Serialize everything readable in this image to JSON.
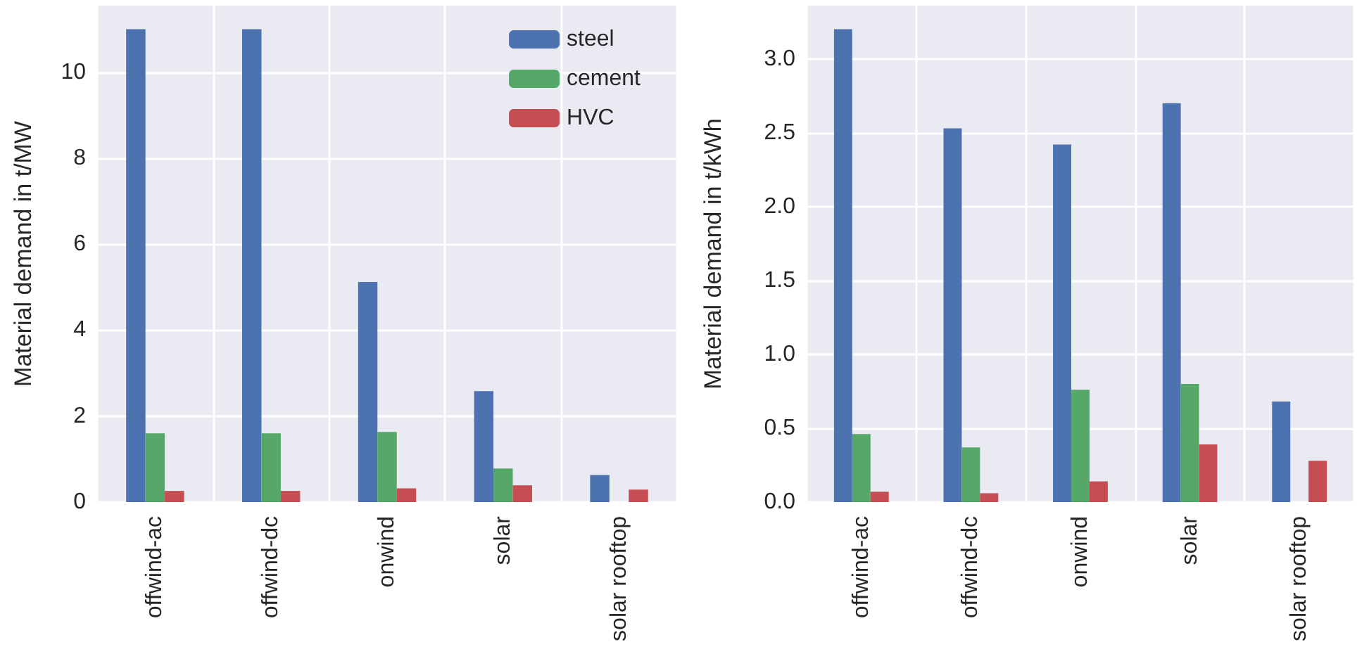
{
  "chart_data": [
    {
      "type": "bar",
      "ylabel": "Material demand in t/MW",
      "categories": [
        "offwind-ac",
        "offwind-dc",
        "onwind",
        "solar",
        "solar rooftop"
      ],
      "series": [
        {
          "name": "steel",
          "color": "#4c72b0",
          "values": [
            11.0,
            11.0,
            5.12,
            2.58,
            0.63
          ]
        },
        {
          "name": "cement",
          "color": "#55a868",
          "values": [
            1.6,
            1.6,
            1.63,
            0.78,
            null
          ]
        },
        {
          "name": "HVC",
          "color": "#c44e52",
          "values": [
            0.26,
            0.26,
            0.32,
            0.39,
            0.29
          ]
        }
      ],
      "ylim": [
        0,
        11.55
      ],
      "yticks": [
        0,
        2,
        4,
        6,
        8,
        10
      ],
      "grid": true,
      "legend": "top right"
    },
    {
      "type": "bar",
      "ylabel": "Material demand in t/kWh",
      "categories": [
        "offwind-ac",
        "offwind-dc",
        "onwind",
        "solar",
        "solar rooftop"
      ],
      "series": [
        {
          "color": "#4c72b0",
          "values": [
            3.2,
            2.53,
            2.42,
            2.7,
            0.68
          ]
        },
        {
          "color": "#55a868",
          "values": [
            0.46,
            0.37,
            0.76,
            0.8,
            null
          ]
        },
        {
          "color": "#c44e52",
          "values": [
            0.07,
            0.06,
            0.14,
            0.39,
            0.28
          ]
        }
      ],
      "ylim": [
        0,
        3.36
      ],
      "yticks": [
        {
          "value": 0,
          "label": "0.0"
        },
        {
          "value": 0.5,
          "label": "0.5"
        },
        {
          "value": 1,
          "label": "1.0"
        },
        {
          "value": 1.5,
          "label": "1.5"
        },
        {
          "value": 2,
          "label": "2.0"
        },
        {
          "value": 2.5,
          "label": "2.5"
        },
        {
          "value": 3,
          "label": "3.0"
        }
      ],
      "grid": true
    }
  ]
}
